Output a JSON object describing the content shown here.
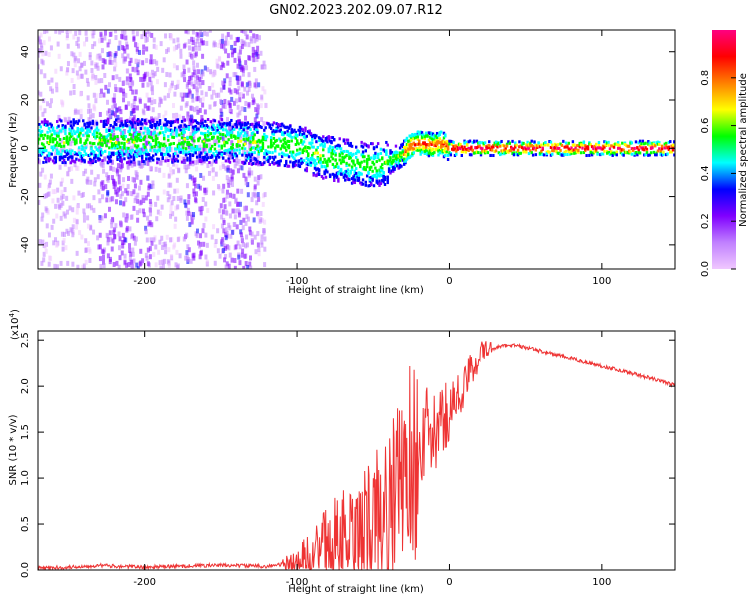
{
  "title": "GN02.2023.202.09.07.R12",
  "chart_data": [
    {
      "type": "heatmap",
      "xlabel": "Height of straight line (km)",
      "ylabel": "Frequency (Hz)",
      "xlim": [
        -270,
        148
      ],
      "ylim": [
        -50,
        49
      ],
      "x_ticks": [
        -200,
        -100,
        0,
        100
      ],
      "y_ticks": [
        -40,
        -20,
        0,
        20,
        40
      ],
      "grid": false,
      "ridge_frequency": {
        "x": [
          -270,
          -200,
          -150,
          -120,
          -100,
          -90,
          -80,
          -70,
          -60,
          -50,
          -40,
          -30,
          -25,
          -20,
          -15,
          -10,
          -5,
          0,
          20,
          148
        ],
        "y": [
          3,
          3,
          3,
          2,
          1,
          -2,
          -4,
          -5,
          -6,
          -7,
          -6,
          -2,
          1,
          2,
          2,
          1,
          2,
          0,
          0,
          0
        ]
      },
      "colorbar": {
        "label": "Normalized spectral amplitude",
        "ticks": [
          0.0,
          0.2,
          0.4,
          0.6,
          0.8
        ],
        "range": [
          0,
          1
        ],
        "colors": [
          "#f0c8ff",
          "#c080ff",
          "#8000ff",
          "#0000ff",
          "#00ffff",
          "#00ff00",
          "#ffff00",
          "#ff8000",
          "#ff0000",
          "#ff0080"
        ]
      }
    },
    {
      "type": "line",
      "xlabel": "Height of straight line (km)",
      "ylabel": "SNR (10 * v/v)",
      "scale_label": "(x10",
      "scale_exp": "4",
      "scale_close": ")",
      "xlim": [
        -270,
        148
      ],
      "ylim": [
        0,
        2.6
      ],
      "x_ticks": [
        -200,
        -100,
        0,
        100
      ],
      "y_ticks": [
        0.0,
        0.5,
        1.0,
        1.5,
        2.0,
        2.5
      ],
      "line_color": "#ee3333",
      "grid": false,
      "series": [
        {
          "x": [
            -270,
            -250,
            -230,
            -200,
            -180,
            -160,
            -140,
            -120,
            -110,
            -100,
            -95,
            -90,
            -85,
            -80,
            -75,
            -70,
            -65,
            -60,
            -55,
            -50,
            -45,
            -40,
            -35,
            -30,
            -27,
            -25,
            -22,
            -20,
            -15,
            -10,
            -5,
            0,
            5,
            10,
            15,
            20,
            25,
            30,
            40,
            50,
            60,
            80,
            100,
            120,
            140,
            148
          ],
          "y": [
            0.02,
            0.03,
            0.05,
            0.03,
            0.04,
            0.05,
            0.05,
            0.04,
            0.06,
            0.08,
            0.12,
            0.18,
            0.22,
            0.3,
            0.35,
            0.4,
            0.25,
            0.25,
            0.4,
            0.55,
            0.6,
            0.65,
            0.8,
            1.0,
            1.3,
            1.15,
            1.2,
            1.3,
            1.5,
            1.45,
            1.6,
            1.75,
            1.85,
            2.0,
            2.2,
            2.35,
            2.4,
            2.42,
            2.45,
            2.42,
            2.38,
            2.3,
            2.22,
            2.14,
            2.05,
            2.01
          ]
        }
      ]
    }
  ]
}
